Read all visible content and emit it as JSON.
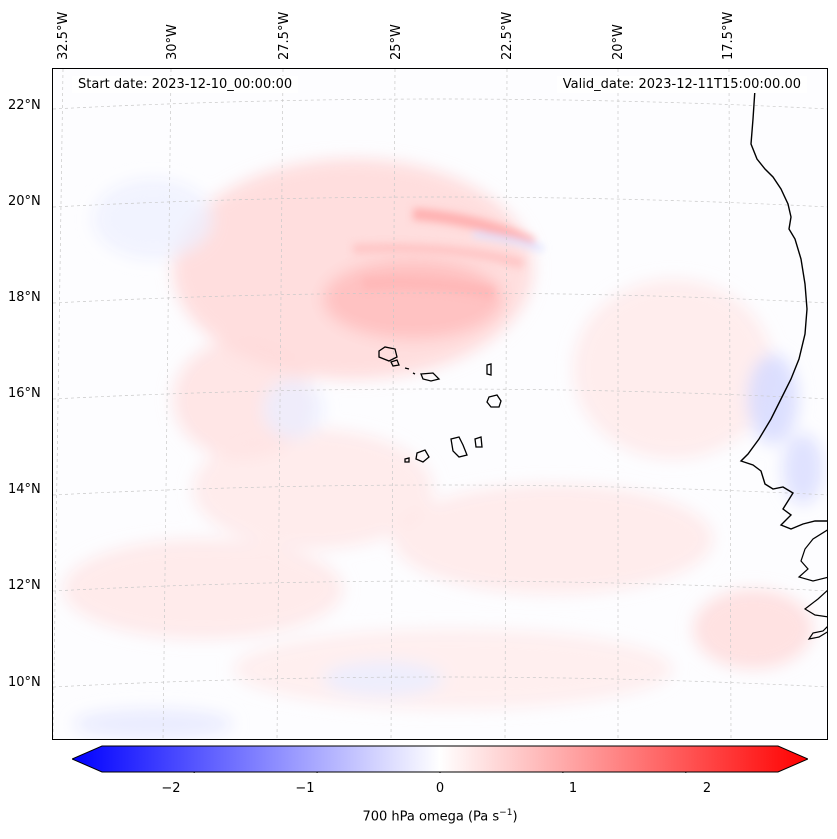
{
  "map": {
    "lon_labels": [
      "32.5°W",
      "30°W",
      "27.5°W",
      "25°W",
      "22.5°W",
      "20°W",
      "17.5°W"
    ],
    "lat_labels": [
      "22°N",
      "20°N",
      "18°N",
      "16°N",
      "14°N",
      "12°N",
      "10°N"
    ],
    "start_date": "Start date: 2023-12-10_00:00:00",
    "valid_date": "Valid_date: 2023-12-11T15:00:00.00",
    "colors": {
      "positive": "#ff0000",
      "negative": "#0000ff",
      "neutral": "#ffffff",
      "coastline": "#000000"
    }
  },
  "colorbar": {
    "ticks": [
      "−2",
      "−1",
      "0",
      "1",
      "2"
    ],
    "tick_values": [
      -2,
      -1,
      0,
      1,
      2
    ],
    "range": [
      -2.75,
      2.75
    ],
    "title": "700 hPa omega (Pa s",
    "title_sup": "−1",
    "title_end": ")"
  }
}
